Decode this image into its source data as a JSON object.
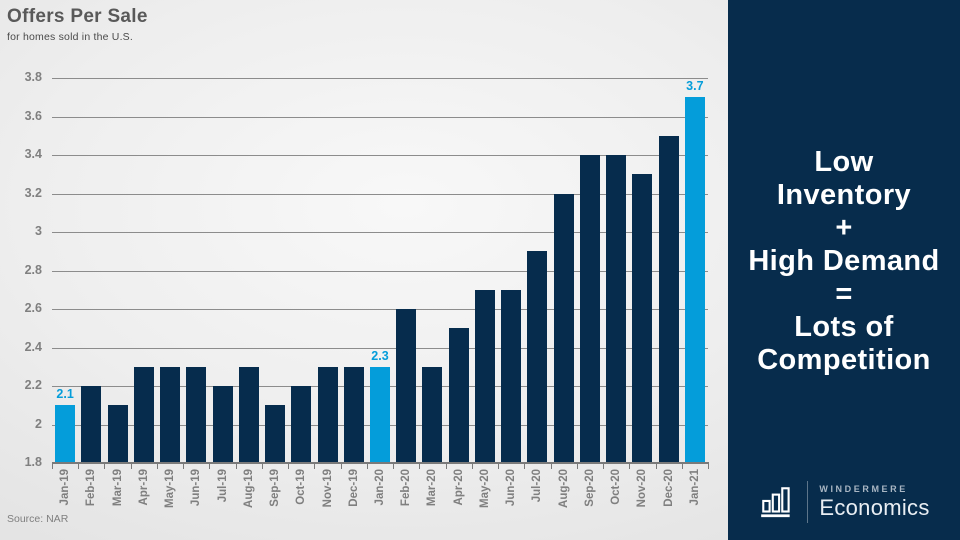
{
  "slide": {
    "title": "Offers Per Sale",
    "subtitle": "for homes sold in the U.S.",
    "source": "Source: NAR"
  },
  "chart_data": {
    "type": "bar",
    "title": "Offers Per Sale",
    "subtitle": "for homes sold in the U.S.",
    "source": "Source: NAR",
    "categories": [
      "Jan-19",
      "Feb-19",
      "Mar-19",
      "Apr-19",
      "May-19",
      "Jun-19",
      "Jul-19",
      "Aug-19",
      "Sep-19",
      "Oct-19",
      "Nov-19",
      "Dec-19",
      "Jan-20",
      "Feb-20",
      "Mar-20",
      "Apr-20",
      "May-20",
      "Jun-20",
      "Jul-20",
      "Aug-20",
      "Sep-20",
      "Oct-20",
      "Nov-20",
      "Dec-20",
      "Jan-21"
    ],
    "values": [
      2.1,
      2.2,
      2.1,
      2.3,
      2.3,
      2.3,
      2.2,
      2.3,
      2.1,
      2.2,
      2.3,
      2.3,
      2.3,
      2.6,
      2.3,
      2.5,
      2.7,
      2.7,
      2.9,
      3.2,
      3.4,
      3.4,
      3.3,
      3.5,
      3.7
    ],
    "highlighted_indices": [
      0,
      12,
      24
    ],
    "data_labels": {
      "0": "2.1",
      "12": "2.3",
      "24": "3.7"
    },
    "ylim": [
      1.8,
      3.8
    ],
    "ytick_labels": [
      "3.8",
      "3.6",
      "3.4",
      "3.2",
      "3",
      "2.8",
      "2.6",
      "2.4",
      "2.2",
      "2",
      "1.8"
    ],
    "ytick_values": [
      3.8,
      3.6,
      3.4,
      3.2,
      3.0,
      2.8,
      2.6,
      2.4,
      2.2,
      2.0,
      1.8
    ],
    "grid": true,
    "legend": false,
    "xlabel": "",
    "ylabel": "",
    "bar_color": "#062c4d",
    "highlight_color": "#049dda",
    "axis_color": "#7a7a7a",
    "tick_label_color": "#7f7f7f"
  },
  "panel": {
    "background_color": "#072c4c",
    "message_lines": [
      "Low",
      "Inventory",
      "+",
      "High Demand",
      "=",
      "Lots of",
      "Competition"
    ],
    "logo": {
      "icon": "bar-chart-icon",
      "brand": "WINDERMERE",
      "division": "Economics"
    }
  }
}
